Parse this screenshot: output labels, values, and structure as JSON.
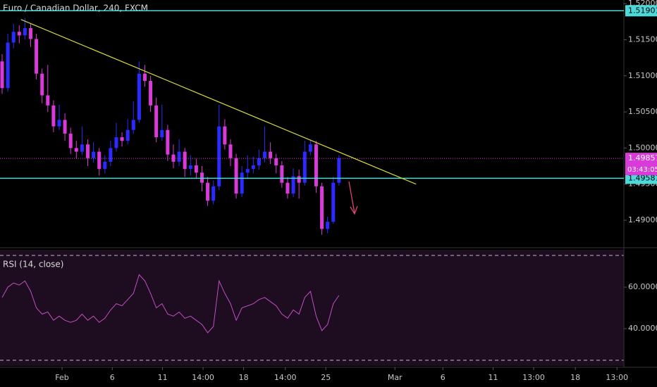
{
  "chart_data": [
    {
      "type": "candlestick",
      "title": "Euro / Canadian Dollar, 240, FXCM",
      "up_color": "#2b2bff",
      "down_color": "#d93ad9",
      "open": [
        1.512,
        1.5083,
        1.5146,
        1.5161,
        1.5156,
        1.5166,
        1.5151,
        1.5103,
        1.5073,
        1.5059,
        1.503,
        1.5039,
        1.502,
        1.5,
        1.4995,
        1.5005,
        1.4986,
        1.4995,
        1.4971,
        1.4981,
        1.5,
        1.5015,
        1.501,
        1.5025,
        1.5039,
        1.5103,
        1.5093,
        1.5059,
        1.5015,
        1.5025,
        1.4991,
        1.4981,
        1.4995,
        1.4971,
        1.4976,
        1.4966,
        1.4952,
        1.4927,
        1.4947,
        1.503,
        1.5005,
        1.4986,
        1.4937,
        1.4966,
        1.4971,
        1.4976,
        1.4986,
        1.4995,
        1.4986,
        1.4976,
        1.4952,
        1.4937,
        1.4961,
        1.4952,
        1.4995,
        1.5005,
        1.4947,
        1.4888,
        1.4898,
        1.4952
      ],
      "high": [
        1.513,
        1.5158,
        1.5172,
        1.517,
        1.518,
        1.5172,
        1.5158,
        1.511,
        1.5115,
        1.5066,
        1.506,
        1.5048,
        1.5028,
        1.501,
        1.503,
        1.5012,
        1.5008,
        1.5,
        1.499,
        1.501,
        1.5035,
        1.5022,
        1.504,
        1.5065,
        1.512,
        1.5115,
        1.51,
        1.507,
        1.506,
        1.5032,
        1.5005,
        1.5012,
        1.5,
        1.499,
        1.4985,
        1.4975,
        1.496,
        1.4955,
        1.506,
        1.504,
        1.5012,
        1.4992,
        1.4975,
        1.499,
        1.4988,
        1.4998,
        1.503,
        1.5008,
        1.4992,
        1.4982,
        1.496,
        1.4972,
        1.497,
        1.501,
        1.5012,
        1.501,
        1.4952,
        1.4905,
        1.496,
        1.499
      ],
      "low": [
        1.5075,
        1.5078,
        1.5138,
        1.5145,
        1.515,
        1.514,
        1.5095,
        1.5062,
        1.505,
        1.5022,
        1.5025,
        1.501,
        1.4992,
        1.4985,
        1.499,
        1.4975,
        1.498,
        1.4962,
        1.4965,
        1.4975,
        1.4995,
        1.5002,
        1.5005,
        1.502,
        1.5035,
        1.5085,
        1.505,
        1.5008,
        1.501,
        1.4982,
        1.4972,
        1.4975,
        1.496,
        1.4962,
        1.4958,
        1.494,
        1.492,
        1.4922,
        1.4942,
        1.4998,
        1.4975,
        1.493,
        1.4932,
        1.4958,
        1.4965,
        1.497,
        1.498,
        1.4978,
        1.4965,
        1.4945,
        1.493,
        1.4932,
        1.493,
        1.4948,
        1.499,
        1.4938,
        1.488,
        1.4882,
        1.4895,
        1.4948
      ],
      "close": [
        1.5083,
        1.5146,
        1.5161,
        1.5156,
        1.5166,
        1.5151,
        1.5103,
        1.5073,
        1.5059,
        1.503,
        1.5039,
        1.502,
        1.5,
        1.4995,
        1.5005,
        1.4986,
        1.4995,
        1.4971,
        1.4981,
        1.5,
        1.5015,
        1.501,
        1.5025,
        1.5039,
        1.5103,
        1.5093,
        1.5059,
        1.5015,
        1.5025,
        1.4991,
        1.4981,
        1.4995,
        1.4971,
        1.4976,
        1.4966,
        1.4952,
        1.4927,
        1.4947,
        1.503,
        1.5005,
        1.4986,
        1.4937,
        1.4966,
        1.4971,
        1.4976,
        1.4986,
        1.4995,
        1.4986,
        1.4976,
        1.4952,
        1.4937,
        1.4961,
        1.4952,
        1.4995,
        1.5005,
        1.4947,
        1.4888,
        1.4898,
        1.4952,
        1.4986
      ],
      "xlim": [
        -0.37,
        108.9
      ],
      "ylim": [
        1.4864,
        1.5205
      ],
      "yticks": [
        {
          "value": 1.49,
          "label": "1.49000"
        },
        {
          "value": 1.495,
          "label": "1.49500"
        },
        {
          "value": 1.5,
          "label": "1.50000"
        },
        {
          "value": 1.505,
          "label": "1.50500"
        },
        {
          "value": 1.51,
          "label": "1.51000"
        },
        {
          "value": 1.515,
          "label": "1.51500"
        },
        {
          "value": 1.52,
          "label": "1.52000"
        }
      ],
      "xticks": [
        {
          "value": 10.5,
          "label": "Feb"
        },
        {
          "value": 19.3,
          "label": "6"
        },
        {
          "value": 28.1,
          "label": "11"
        },
        {
          "value": 35.2,
          "label": "14:00"
        },
        {
          "value": 42.3,
          "label": "18"
        },
        {
          "value": 49.6,
          "label": "14:00"
        },
        {
          "value": 56.7,
          "label": "25"
        },
        {
          "value": 68.8,
          "label": "Mar"
        },
        {
          "value": 77.2,
          "label": "6"
        },
        {
          "value": 86.0,
          "label": "11"
        },
        {
          "value": 93.1,
          "label": "13:00"
        },
        {
          "value": 100.4,
          "label": "18"
        },
        {
          "value": 107.7,
          "label": "13:00"
        }
      ],
      "levels": [
        1.51901,
        1.49581
      ],
      "level_color": "#4dd9d9",
      "last_price": 1.49857,
      "last_price_color": "#d93ad9",
      "countdown": "03:43:05",
      "trendline": {
        "x": [
          3.3,
          72.5
        ],
        "y": [
          1.5178,
          1.495
        ],
        "color": "#d9d93a"
      }
    },
    {
      "type": "line",
      "title": "RSI (14, close)",
      "color": "#c24fc2",
      "values": [
        55,
        60,
        62,
        61,
        63,
        58,
        50,
        47,
        48,
        44,
        46,
        44,
        43,
        44,
        47,
        44,
        46,
        43,
        45,
        49,
        52,
        51,
        54,
        57,
        66,
        63,
        57,
        50,
        52,
        47,
        46,
        48,
        45,
        46,
        44,
        42,
        38,
        41,
        63,
        57,
        52,
        44,
        50,
        51,
        52,
        54,
        55,
        53,
        51,
        47,
        45,
        49,
        47,
        55,
        58,
        46,
        39,
        42,
        52,
        56
      ],
      "ylim": [
        23.7,
        75.3
      ],
      "yticks": [
        {
          "value": 40,
          "label": "40.0000"
        },
        {
          "value": 60,
          "label": "60.0000"
        }
      ]
    }
  ]
}
